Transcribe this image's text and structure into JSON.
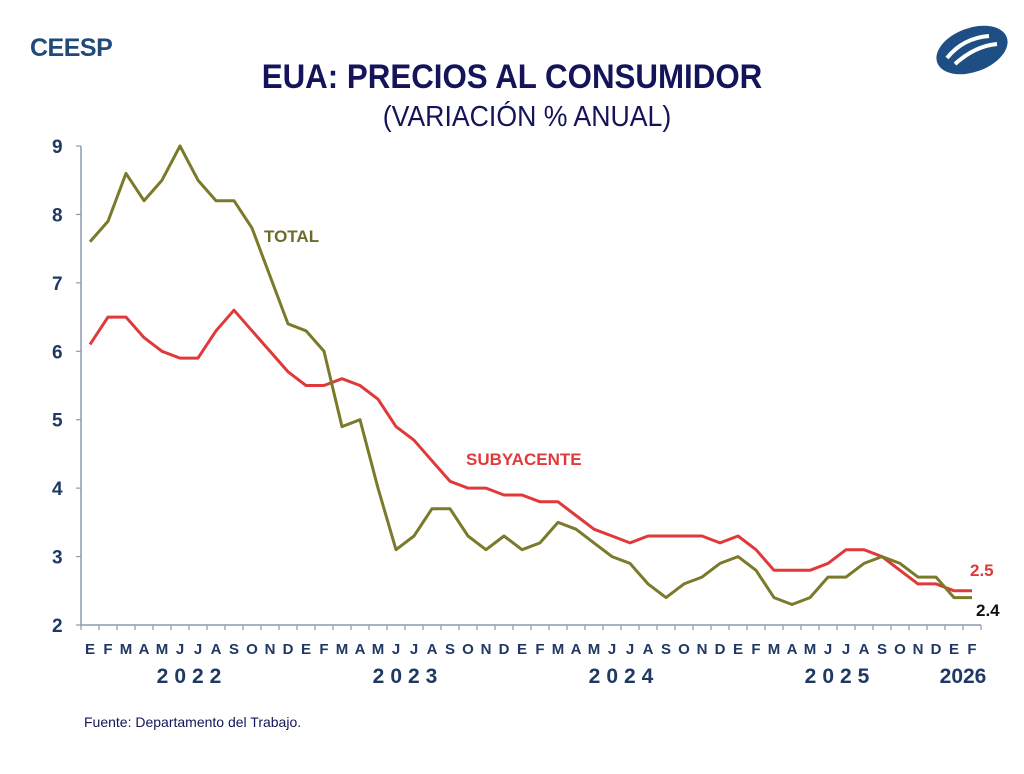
{
  "header": {
    "brand": "CEESP",
    "logo_icon": "ceesp-logo-icon",
    "title": "EUA: PRECIOS AL CONSUMIDOR",
    "subtitle": "(VARIACIÓN % ANUAL)"
  },
  "footer": {
    "source": "Fuente: Departamento del Trabajo."
  },
  "chart_data": {
    "type": "line",
    "title": "EUA: PRECIOS AL CONSUMIDOR",
    "subtitle": "(VARIACIÓN % ANUAL)",
    "xlabel": "",
    "ylabel": "",
    "ylim": [
      2,
      9
    ],
    "yticks": [
      "2",
      "3",
      "4",
      "5",
      "6",
      "7",
      "8",
      "9"
    ],
    "grid": false,
    "month_labels": [
      "E",
      "F",
      "M",
      "A",
      "M",
      "J",
      "J",
      "A",
      "S",
      "O",
      "N",
      "D",
      "E",
      "F",
      "M",
      "A",
      "M",
      "J",
      "J",
      "A",
      "S",
      "O",
      "N",
      "D",
      "E",
      "F",
      "M",
      "A",
      "M",
      "J",
      "J",
      "A",
      "S",
      "O",
      "N",
      "D",
      "E",
      "F",
      "M",
      "A",
      "M",
      "J",
      "J",
      "A",
      "S",
      "O",
      "N",
      "D",
      "E",
      "F"
    ],
    "year_labels": [
      {
        "label": "2022",
        "start_index": 0,
        "end_index": 11
      },
      {
        "label": "2023",
        "start_index": 12,
        "end_index": 23
      },
      {
        "label": "2024",
        "start_index": 24,
        "end_index": 35
      },
      {
        "label": "2025",
        "start_index": 36,
        "end_index": 47
      },
      {
        "label": "2026",
        "start_index": 48,
        "end_index": 49
      }
    ],
    "series": [
      {
        "name": "TOTAL",
        "color": "#7a7a2a",
        "values": [
          7.6,
          7.9,
          8.6,
          8.2,
          8.5,
          9.0,
          8.5,
          8.2,
          8.2,
          7.8,
          7.1,
          6.4,
          6.3,
          6.0,
          4.9,
          5.0,
          4.0,
          3.1,
          3.3,
          3.7,
          3.7,
          3.3,
          3.1,
          3.3,
          3.1,
          3.2,
          3.5,
          3.4,
          3.2,
          3.0,
          2.9,
          2.6,
          2.4,
          2.6,
          2.7,
          2.9,
          3.0,
          2.8,
          2.4,
          2.3,
          2.4,
          2.7,
          2.7,
          2.9,
          3.0,
          2.9,
          2.7,
          2.7,
          2.4,
          2.4
        ],
        "end_label": "2.4"
      },
      {
        "name": "SUBYACENTE",
        "color": "#e0393a",
        "values": [
          6.1,
          6.5,
          6.5,
          6.2,
          6.0,
          5.9,
          5.9,
          6.3,
          6.6,
          6.3,
          6.0,
          5.7,
          5.5,
          5.5,
          5.6,
          5.5,
          5.3,
          4.9,
          4.7,
          4.4,
          4.1,
          4.0,
          4.0,
          3.9,
          3.9,
          3.8,
          3.8,
          3.6,
          3.4,
          3.3,
          3.2,
          3.3,
          3.3,
          3.3,
          3.3,
          3.2,
          3.3,
          3.1,
          2.8,
          2.8,
          2.8,
          2.9,
          3.1,
          3.1,
          3.0,
          2.8,
          2.6,
          2.6,
          2.5,
          2.5
        ],
        "end_label": "2.5"
      }
    ],
    "annotations": [
      {
        "text": "TOTAL",
        "series": "TOTAL"
      },
      {
        "text": "SUBYACENTE",
        "series": "SUBYACENTE"
      }
    ],
    "legend": "inline-labels"
  }
}
